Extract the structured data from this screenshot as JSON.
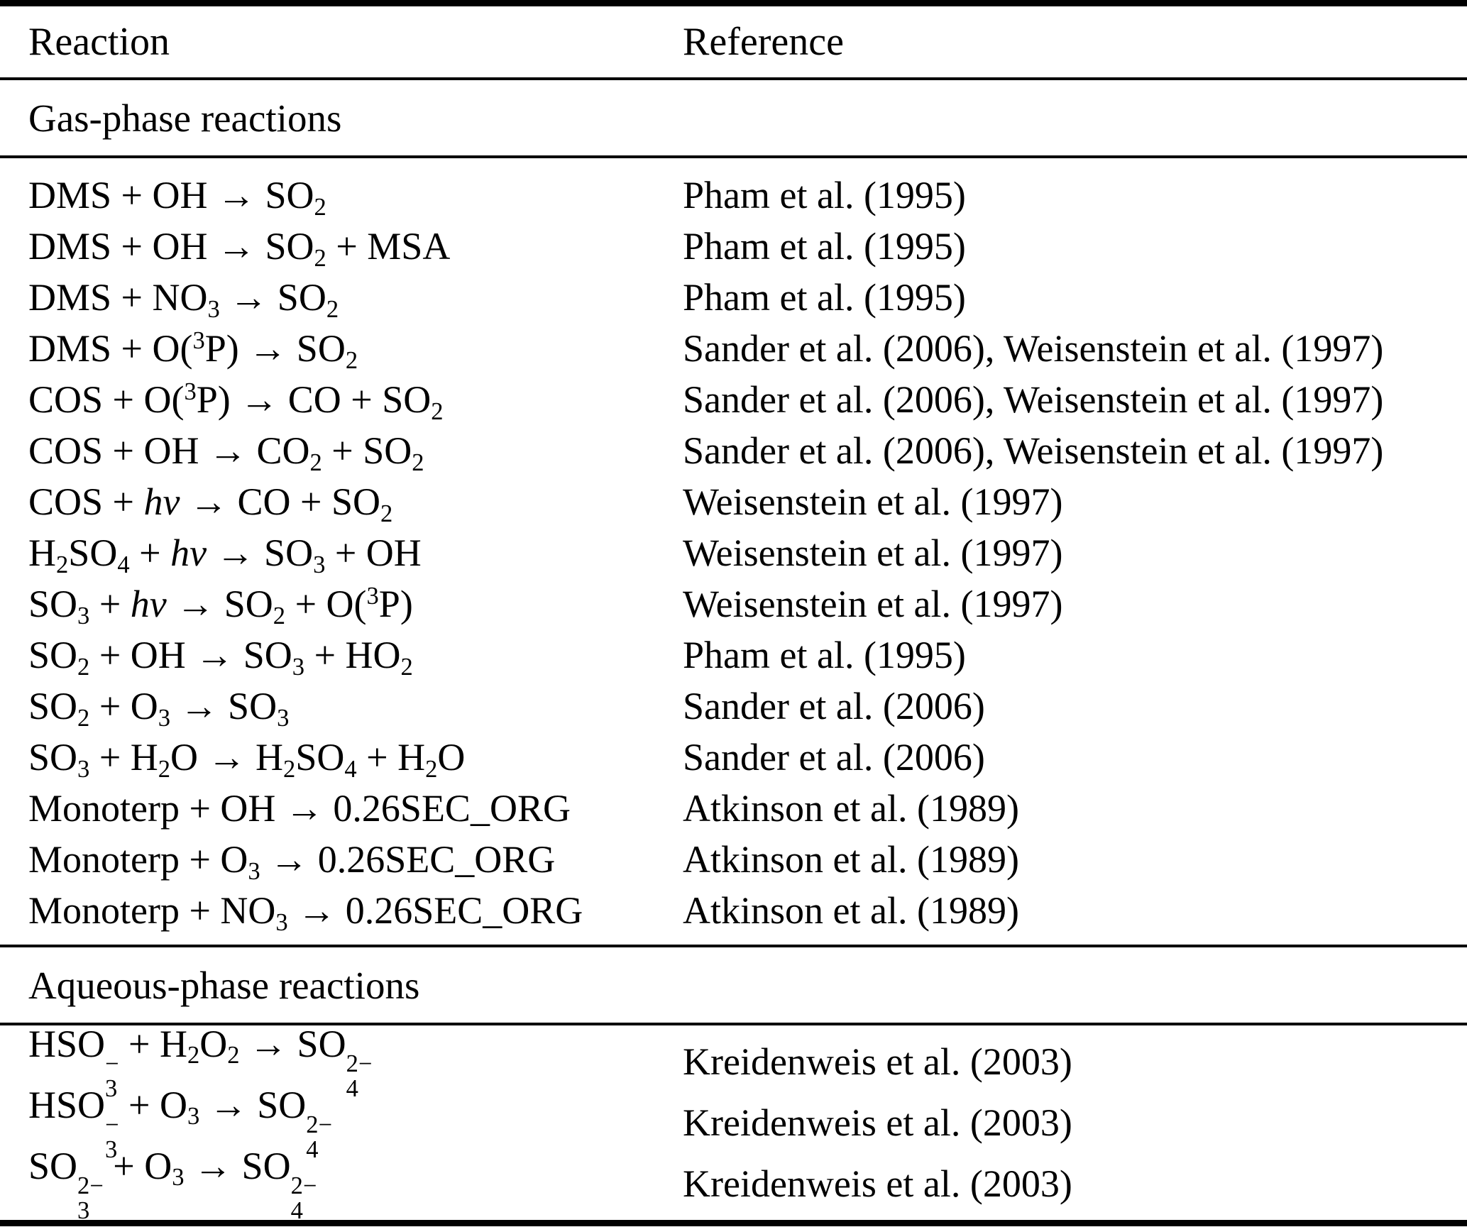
{
  "colors": {
    "text": "#000000",
    "background": "#ffffff",
    "rule": "#000000"
  },
  "header": {
    "reaction": "Reaction",
    "reference": "Reference"
  },
  "sections": [
    {
      "title": "Gas-phase reactions",
      "rows": [
        {
          "reaction": [
            {
              "t": "DMS + OH → SO"
            },
            {
              "sub": "2"
            }
          ],
          "reference": "Pham et al. (1995)"
        },
        {
          "reaction": [
            {
              "t": "DMS + OH → SO"
            },
            {
              "sub": "2"
            },
            {
              "t": " + MSA"
            }
          ],
          "reference": "Pham et al. (1995)"
        },
        {
          "reaction": [
            {
              "t": "DMS + NO"
            },
            {
              "sub": "3"
            },
            {
              "t": " → SO"
            },
            {
              "sub": "2"
            }
          ],
          "reference": "Pham et al. (1995)"
        },
        {
          "reaction": [
            {
              "t": "DMS + O("
            },
            {
              "sup": "3"
            },
            {
              "t": "P) → SO"
            },
            {
              "sub": "2"
            }
          ],
          "reference": "Sander et al. (2006), Weisenstein et al. (1997)"
        },
        {
          "reaction": [
            {
              "t": "COS + O("
            },
            {
              "sup": "3"
            },
            {
              "t": "P) → CO + SO"
            },
            {
              "sub": "2"
            }
          ],
          "reference": "Sander et al. (2006), Weisenstein et al. (1997)"
        },
        {
          "reaction": [
            {
              "t": "COS + OH → CO"
            },
            {
              "sub": "2"
            },
            {
              "t": " + SO"
            },
            {
              "sub": "2"
            }
          ],
          "reference": "Sander et al. (2006), Weisenstein et al. (1997)"
        },
        {
          "reaction": [
            {
              "t": "COS + "
            },
            {
              "i": "hv"
            },
            {
              "t": " → CO + SO"
            },
            {
              "sub": "2"
            }
          ],
          "reference": "Weisenstein et al. (1997)"
        },
        {
          "reaction": [
            {
              "t": "H"
            },
            {
              "sub": "2"
            },
            {
              "t": "SO"
            },
            {
              "sub": "4"
            },
            {
              "t": " + "
            },
            {
              "i": "hv"
            },
            {
              "t": " → SO"
            },
            {
              "sub": "3"
            },
            {
              "t": " + OH"
            }
          ],
          "reference": "Weisenstein et al. (1997)"
        },
        {
          "reaction": [
            {
              "t": "SO"
            },
            {
              "sub": "3"
            },
            {
              "t": " + "
            },
            {
              "i": "hv"
            },
            {
              "t": " → SO"
            },
            {
              "sub": "2"
            },
            {
              "t": " + O("
            },
            {
              "sup": "3"
            },
            {
              "t": "P)"
            }
          ],
          "reference": "Weisenstein et al. (1997)"
        },
        {
          "reaction": [
            {
              "t": "SO"
            },
            {
              "sub": "2"
            },
            {
              "t": " + OH → SO"
            },
            {
              "sub": "3"
            },
            {
              "t": " + HO"
            },
            {
              "sub": "2"
            }
          ],
          "reference": "Pham et al. (1995)"
        },
        {
          "reaction": [
            {
              "t": "SO"
            },
            {
              "sub": "2"
            },
            {
              "t": " + O"
            },
            {
              "sub": "3"
            },
            {
              "t": " → SO"
            },
            {
              "sub": "3"
            }
          ],
          "reference": "Sander et al. (2006)"
        },
        {
          "reaction": [
            {
              "t": "SO"
            },
            {
              "sub": "3"
            },
            {
              "t": " + H"
            },
            {
              "sub": "2"
            },
            {
              "t": "O → H"
            },
            {
              "sub": "2"
            },
            {
              "t": "SO"
            },
            {
              "sub": "4"
            },
            {
              "t": " + H"
            },
            {
              "sub": "2"
            },
            {
              "t": "O"
            }
          ],
          "reference": "Sander et al. (2006)"
        },
        {
          "reaction": [
            {
              "t": "Monoterp + OH → 0.26SEC_ORG"
            }
          ],
          "reference": "Atkinson et al. (1989)"
        },
        {
          "reaction": [
            {
              "t": "Monoterp + O"
            },
            {
              "sub": "3"
            },
            {
              "t": " → 0.26SEC_ORG"
            }
          ],
          "reference": "Atkinson et al. (1989)"
        },
        {
          "reaction": [
            {
              "t": "Monoterp + NO"
            },
            {
              "sub": "3"
            },
            {
              "t": " → 0.26SEC_ORG"
            }
          ],
          "reference": "Atkinson et al. (1989)"
        }
      ]
    },
    {
      "title": "Aqueous-phase reactions",
      "rows": [
        {
          "reaction": [
            {
              "t": "HSO"
            },
            {
              "stk": [
                "−",
                "3"
              ]
            },
            {
              "t": " + H"
            },
            {
              "sub": "2"
            },
            {
              "t": "O"
            },
            {
              "sub": "2"
            },
            {
              "t": " → SO"
            },
            {
              "stk": [
                "2−",
                "4"
              ]
            }
          ],
          "reference": "Kreidenweis et al. (2003)"
        },
        {
          "reaction": [
            {
              "t": "HSO"
            },
            {
              "stk": [
                "−",
                "3"
              ]
            },
            {
              "t": " + O"
            },
            {
              "sub": "3"
            },
            {
              "t": " → SO"
            },
            {
              "stk": [
                "2−",
                "4"
              ]
            }
          ],
          "reference": "Kreidenweis et al. (2003)"
        },
        {
          "reaction": [
            {
              "t": "SO"
            },
            {
              "stk": [
                "2−",
                "3"
              ]
            },
            {
              "t": " + O"
            },
            {
              "sub": "3"
            },
            {
              "t": " → SO"
            },
            {
              "stk": [
                "2−",
                "4"
              ]
            }
          ],
          "reference": "Kreidenweis et al. (2003)"
        }
      ]
    }
  ]
}
